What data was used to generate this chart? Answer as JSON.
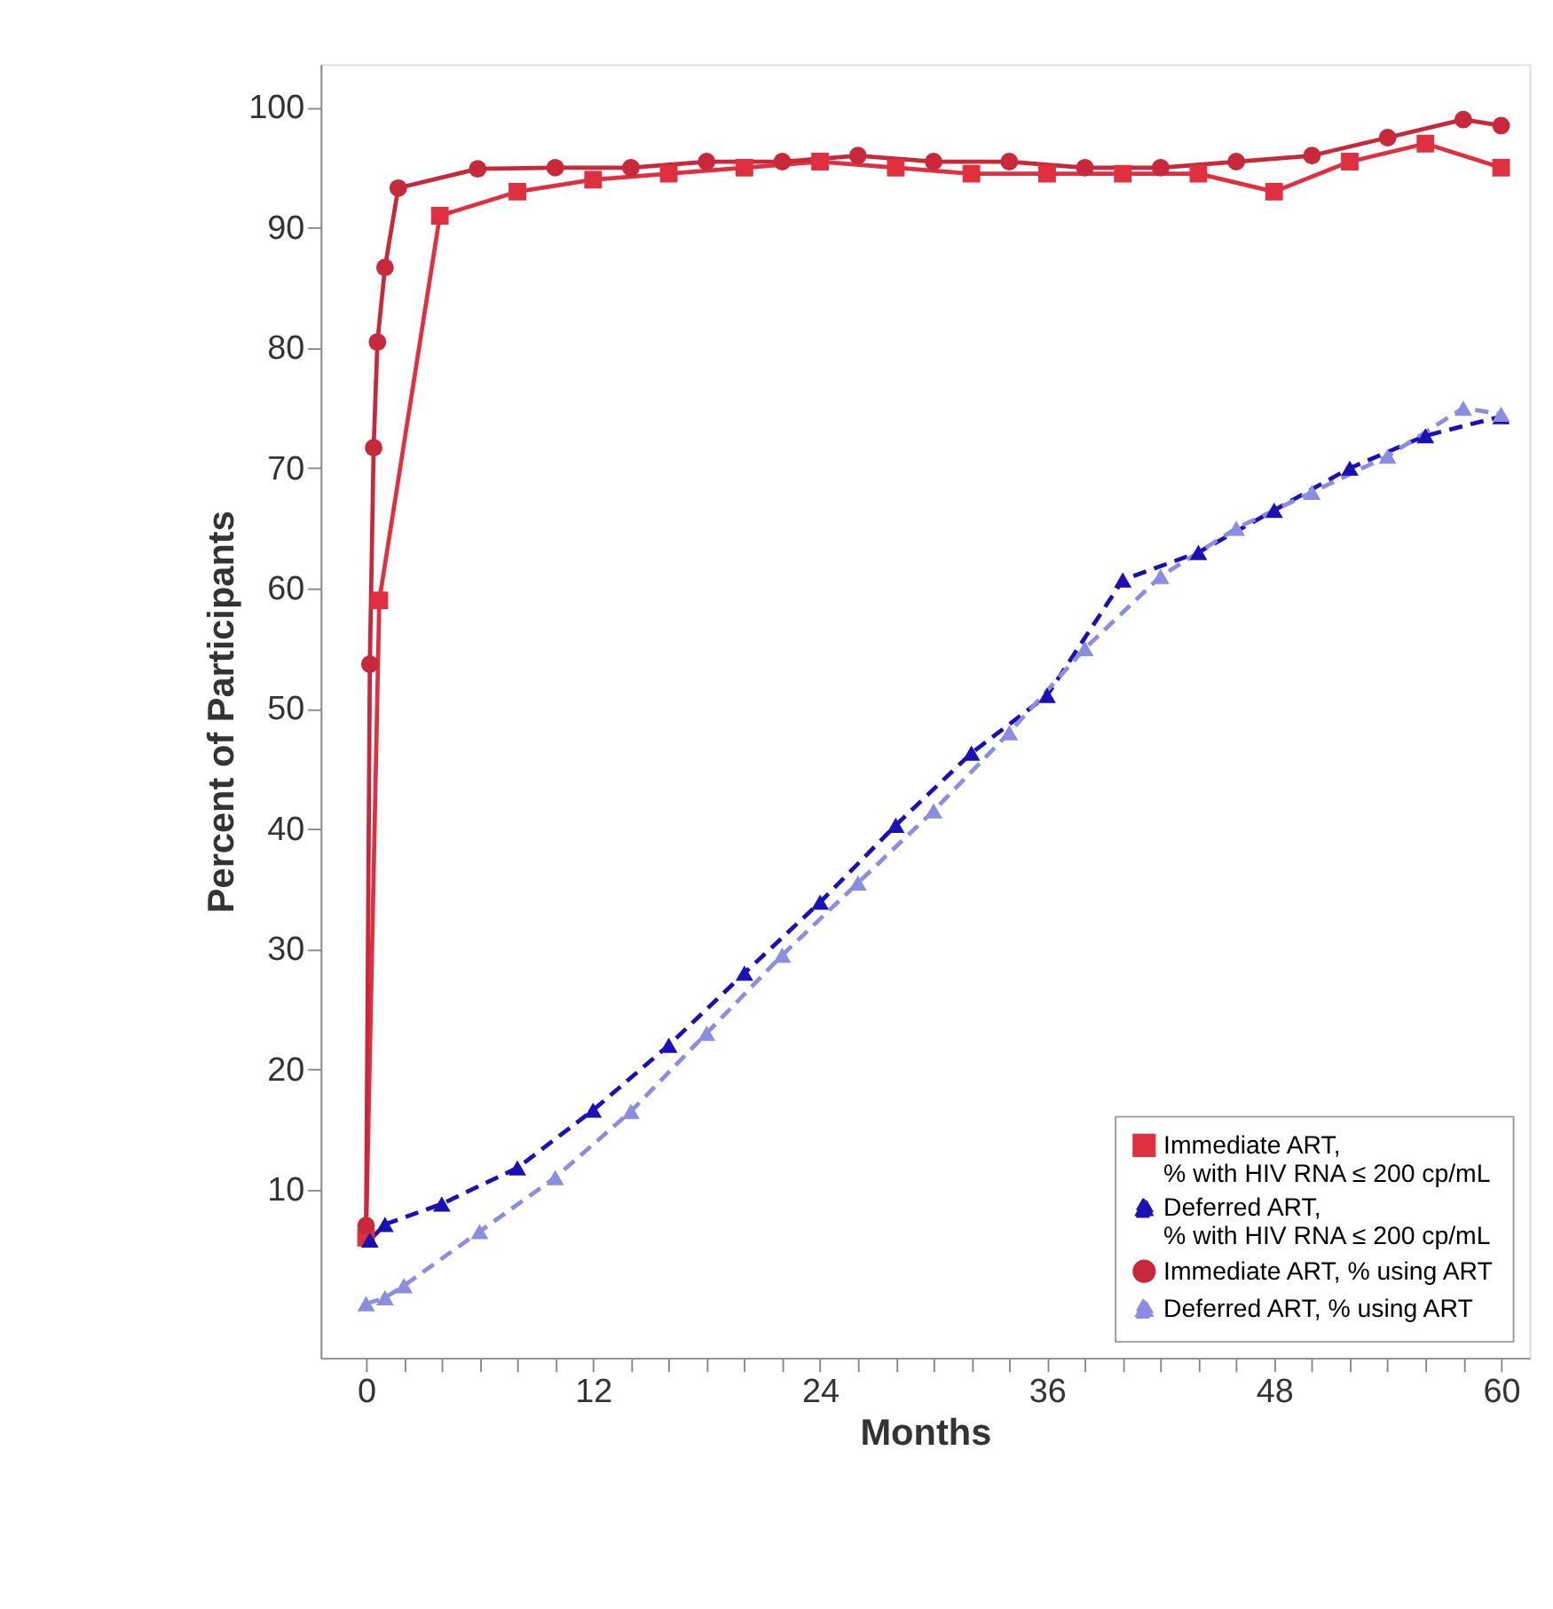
{
  "chart_data": {
    "type": "line",
    "xlabel": "Months",
    "ylabel": "Percent of Participants",
    "xlim": [
      -2.4,
      61.5
    ],
    "ylim": [
      -4,
      103.6
    ],
    "xticks": [
      0,
      {
        "value": 2,
        "label": null
      },
      {
        "value": 4,
        "label": null
      },
      {
        "value": 6,
        "label": null
      },
      {
        "value": 8,
        "label": null
      },
      {
        "value": 10,
        "label": null
      },
      12,
      {
        "value": 14,
        "label": null
      },
      {
        "value": 16,
        "label": null
      },
      {
        "value": 18,
        "label": null
      },
      {
        "value": 20,
        "label": null
      },
      {
        "value": 22,
        "label": null
      },
      24,
      {
        "value": 26,
        "label": null
      },
      {
        "value": 28,
        "label": null
      },
      {
        "value": 30,
        "label": null
      },
      {
        "value": 32,
        "label": null
      },
      {
        "value": 34,
        "label": null
      },
      36,
      {
        "value": 38,
        "label": null
      },
      {
        "value": 40,
        "label": null
      },
      {
        "value": 42,
        "label": null
      },
      {
        "value": 44,
        "label": null
      },
      {
        "value": 46,
        "label": null
      },
      48,
      {
        "value": 50,
        "label": null
      },
      {
        "value": 52,
        "label": null
      },
      {
        "value": 54,
        "label": null
      },
      {
        "value": 56,
        "label": null
      },
      {
        "value": 58,
        "label": null
      },
      60
    ],
    "yticks": [
      10,
      20,
      30,
      40,
      50,
      60,
      70,
      80,
      90,
      100
    ],
    "grid": false,
    "legend": "bottom right",
    "series": [
      {
        "name": "Immediate ART,\n% with HIV RNA ≤ 200 cp/mL",
        "color": "#e03040",
        "marker": "square",
        "line_style": "solid",
        "x": [
          0,
          0.7,
          3.9,
          8,
          12,
          16,
          20,
          24,
          28,
          32,
          36,
          40,
          44,
          48,
          52,
          56,
          60
        ],
        "values": [
          6,
          59,
          91,
          93,
          94,
          94.5,
          95,
          95.5,
          95,
          94.5,
          94.5,
          94.5,
          94.5,
          93,
          95.5,
          97,
          95
        ]
      },
      {
        "name": "Deferred ART,\n% with HIV RNA ≤ 200 cp/mL",
        "color": "#1a10b8",
        "marker": "triangle",
        "line_style": "dashed",
        "x": [
          0.2,
          1,
          4,
          8,
          12,
          16,
          20,
          24,
          28,
          32,
          36,
          40,
          44,
          48,
          52,
          56,
          60
        ],
        "values": [
          5.8,
          7.1,
          8.8,
          11.8,
          16.6,
          22,
          28,
          33.9,
          40.3,
          46.3,
          51.1,
          60.7,
          63,
          66.5,
          70,
          72.7,
          74.3
        ]
      },
      {
        "name": "Immediate ART, % using ART",
        "color": "#c8283a",
        "marker": "circle",
        "line_style": "solid",
        "x": [
          0,
          0.2,
          0.4,
          0.6,
          1,
          1.7,
          5.9,
          10,
          14,
          18,
          22,
          26,
          30,
          34,
          38,
          42,
          46,
          50,
          54,
          58,
          60
        ],
        "values": [
          7,
          53.7,
          71.7,
          80.5,
          86.7,
          93.3,
          94.9,
          95,
          95,
          95.5,
          95.5,
          96,
          95.5,
          95.5,
          95,
          95,
          95.5,
          96,
          97.5,
          99,
          98.5
        ]
      },
      {
        "name": "Deferred ART, % using ART",
        "color": "#8c8ce0",
        "marker": "triangle",
        "line_style": "dashed",
        "x": [
          0,
          1,
          2,
          6,
          10,
          14,
          18,
          22,
          26,
          30,
          34,
          38,
          42,
          46,
          50,
          54,
          58,
          60
        ],
        "values": [
          0.5,
          1,
          2,
          6.5,
          11,
          16.5,
          23,
          29.5,
          35.5,
          41.5,
          48,
          55,
          61,
          65,
          68,
          71,
          75,
          74.5
        ]
      }
    ]
  }
}
